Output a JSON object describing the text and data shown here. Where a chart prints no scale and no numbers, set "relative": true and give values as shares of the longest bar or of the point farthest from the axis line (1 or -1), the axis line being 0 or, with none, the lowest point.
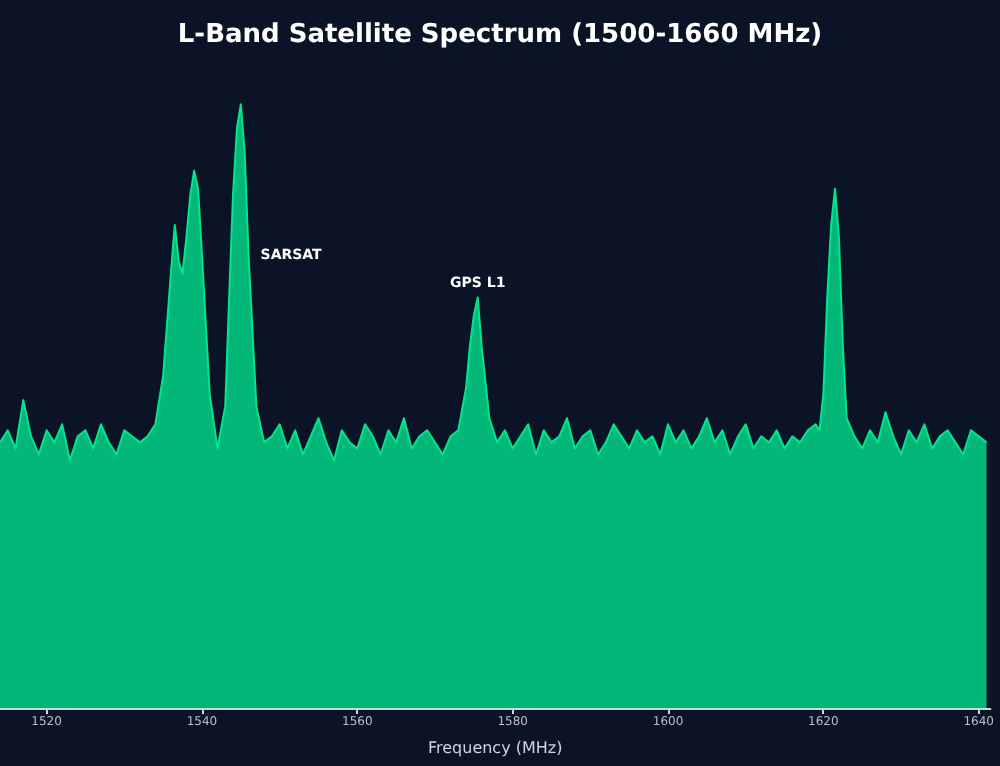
{
  "chart_data": {
    "type": "area",
    "title": "L-Band Satellite Spectrum (1500-1660 MHz)",
    "xlabel": "Frequency (MHz)",
    "relative": true,
    "grid": false,
    "marker": "none",
    "line_style": "solid",
    "xlim": [
      1514,
      1641.5
    ],
    "xticks": [
      1520,
      1540,
      1560,
      1580,
      1600,
      1620,
      1640
    ],
    "annotations": [
      {
        "text": "SARSAT",
        "x": 1546,
        "y": 0.75
      },
      {
        "text": "GPS L1",
        "x": 1575.5,
        "y": 0.68
      }
    ],
    "series": [
      {
        "color": "#00e68f",
        "x": [
          1514,
          1515,
          1516,
          1517,
          1518,
          1519,
          1520,
          1521,
          1522,
          1523,
          1524,
          1525,
          1526,
          1527,
          1528,
          1529,
          1530,
          1531,
          1532,
          1533,
          1534,
          1535,
          1536,
          1536.5,
          1537,
          1537.5,
          1538,
          1538.5,
          1539,
          1539.5,
          1540,
          1541,
          1542,
          1543,
          1543.5,
          1544,
          1544.5,
          1545,
          1545.5,
          1546,
          1547,
          1548,
          1549,
          1550,
          1551,
          1552,
          1553,
          1554,
          1555,
          1556,
          1557,
          1558,
          1559,
          1560,
          1561,
          1562,
          1563,
          1564,
          1565,
          1566,
          1567,
          1568,
          1569,
          1570,
          1571,
          1572,
          1573,
          1574,
          1574.5,
          1575,
          1575.5,
          1576,
          1577,
          1578,
          1579,
          1580,
          1581,
          1582,
          1583,
          1584,
          1585,
          1586,
          1587,
          1588,
          1589,
          1590,
          1591,
          1592,
          1593,
          1594,
          1595,
          1596,
          1597,
          1598,
          1599,
          1600,
          1601,
          1602,
          1603,
          1604,
          1605,
          1606,
          1607,
          1608,
          1609,
          1610,
          1611,
          1612,
          1613,
          1614,
          1615,
          1616,
          1617,
          1618,
          1619,
          1619.5,
          1620,
          1620.5,
          1621,
          1621.5,
          1622,
          1622.5,
          1623,
          1624,
          1625,
          1626,
          1627,
          1628,
          1629,
          1630,
          1631,
          1632,
          1633,
          1634,
          1635,
          1636,
          1637,
          1638,
          1639,
          1640,
          1641
        ],
        "values": [
          0.44,
          0.46,
          0.43,
          0.51,
          0.45,
          0.42,
          0.46,
          0.44,
          0.47,
          0.41,
          0.45,
          0.46,
          0.43,
          0.47,
          0.44,
          0.42,
          0.46,
          0.45,
          0.44,
          0.45,
          0.47,
          0.55,
          0.72,
          0.8,
          0.74,
          0.72,
          0.78,
          0.85,
          0.89,
          0.86,
          0.75,
          0.52,
          0.43,
          0.5,
          0.68,
          0.85,
          0.96,
          1,
          0.92,
          0.75,
          0.5,
          0.44,
          0.45,
          0.47,
          0.43,
          0.46,
          0.42,
          0.45,
          0.48,
          0.44,
          0.41,
          0.46,
          0.44,
          0.43,
          0.47,
          0.45,
          0.42,
          0.46,
          0.44,
          0.48,
          0.43,
          0.45,
          0.46,
          0.44,
          0.42,
          0.45,
          0.46,
          0.53,
          0.6,
          0.65,
          0.68,
          0.6,
          0.48,
          0.44,
          0.46,
          0.43,
          0.45,
          0.47,
          0.42,
          0.46,
          0.44,
          0.45,
          0.48,
          0.43,
          0.45,
          0.46,
          0.42,
          0.44,
          0.47,
          0.45,
          0.43,
          0.46,
          0.44,
          0.45,
          0.42,
          0.47,
          0.44,
          0.46,
          0.43,
          0.45,
          0.48,
          0.44,
          0.46,
          0.42,
          0.45,
          0.47,
          0.43,
          0.45,
          0.44,
          0.46,
          0.43,
          0.45,
          0.44,
          0.46,
          0.47,
          0.46,
          0.52,
          0.68,
          0.8,
          0.86,
          0.78,
          0.6,
          0.48,
          0.45,
          0.43,
          0.46,
          0.44,
          0.49,
          0.45,
          0.42,
          0.46,
          0.44,
          0.47,
          0.43,
          0.45,
          0.46,
          0.44,
          0.42,
          0.46,
          0.45,
          0.44
        ]
      }
    ]
  }
}
